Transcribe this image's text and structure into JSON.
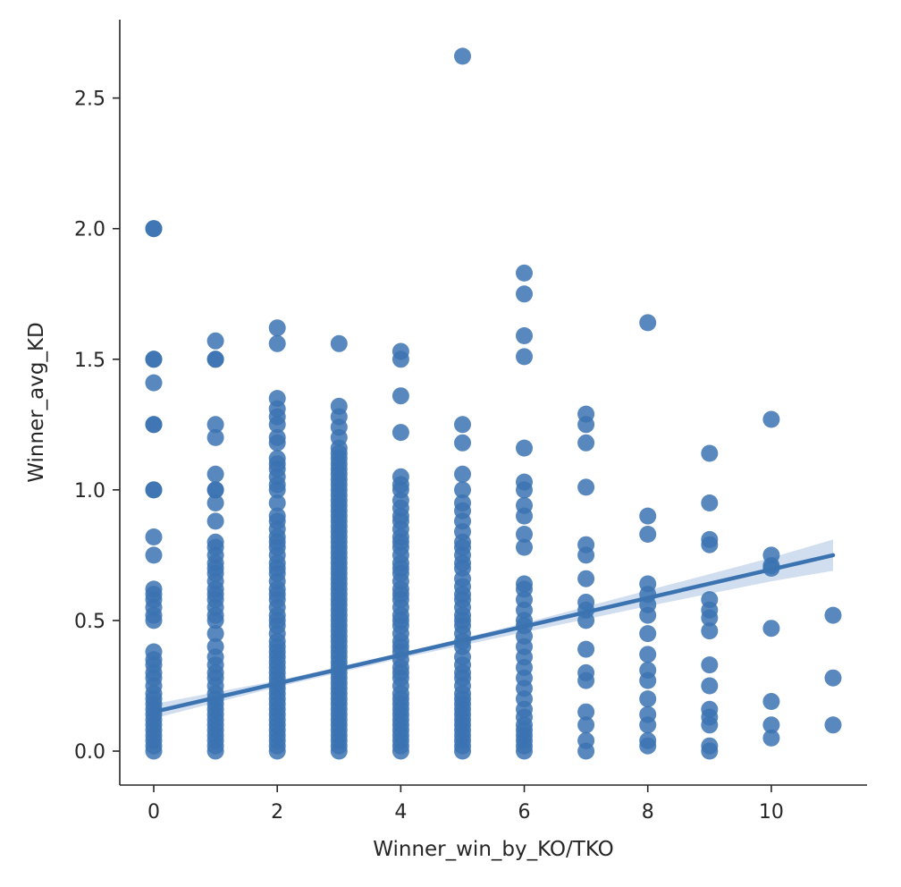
{
  "chart_data": {
    "type": "scatter",
    "title": "",
    "xlabel": "Winner_win_by_KO/TKO",
    "ylabel": "Winner_avg_KD",
    "xlim": [
      -0.55,
      11.55
    ],
    "ylim": [
      -0.13,
      2.8
    ],
    "xticks": [
      0,
      2,
      4,
      6,
      8,
      10
    ],
    "yticks": [
      0.0,
      0.5,
      1.0,
      1.5,
      2.0,
      2.5
    ],
    "ytick_labels": [
      "0.0",
      "0.5",
      "1.0",
      "1.5",
      "2.0",
      "2.5"
    ],
    "grid": false,
    "legend": false,
    "colors": {
      "points": "#3b73b1",
      "regression_line": "#3b73b1",
      "confidence_band": "#b8cde6",
      "axis": "#262626"
    },
    "regression": {
      "x": [
        0,
        11
      ],
      "y": [
        0.15,
        0.75
      ],
      "ci": [
        {
          "x": 0,
          "lower": 0.125,
          "upper": 0.18
        },
        {
          "x": 2,
          "lower": 0.245,
          "upper": 0.27
        },
        {
          "x": 4,
          "lower": 0.355,
          "upper": 0.375
        },
        {
          "x": 6,
          "lower": 0.455,
          "upper": 0.49
        },
        {
          "x": 8,
          "lower": 0.555,
          "upper": 0.615
        },
        {
          "x": 10,
          "lower": 0.65,
          "upper": 0.74
        },
        {
          "x": 11,
          "lower": 0.69,
          "upper": 0.81
        }
      ]
    },
    "series": [
      {
        "values_by_x": [
          {
            "x": 0,
            "y": [
              0,
              0.02,
              0.04,
              0.06,
              0.08,
              0.1,
              0.12,
              0.14,
              0.16,
              0.18,
              0.2,
              0.22,
              0.25,
              0.28,
              0.3,
              0.33,
              0.35,
              0.38,
              0.5,
              0.52,
              0.55,
              0.58,
              0.6,
              0.62,
              0.75,
              0.82,
              1.0,
              1.0,
              1.25,
              1.25,
              1.41,
              1.5,
              1.5,
              2.0,
              2.0
            ]
          },
          {
            "x": 1,
            "y": [
              0,
              0.02,
              0.04,
              0.06,
              0.08,
              0.1,
              0.12,
              0.14,
              0.16,
              0.18,
              0.2,
              0.22,
              0.25,
              0.28,
              0.3,
              0.33,
              0.36,
              0.4,
              0.45,
              0.5,
              0.52,
              0.55,
              0.58,
              0.6,
              0.62,
              0.65,
              0.68,
              0.7,
              0.72,
              0.75,
              0.78,
              0.8,
              0.88,
              0.95,
              1.0,
              1.0,
              1.06,
              1.2,
              1.25,
              1.5,
              1.5,
              1.57
            ]
          },
          {
            "x": 2,
            "y": [
              0,
              0.02,
              0.04,
              0.06,
              0.08,
              0.1,
              0.12,
              0.14,
              0.16,
              0.18,
              0.2,
              0.22,
              0.24,
              0.26,
              0.28,
              0.3,
              0.32,
              0.34,
              0.36,
              0.38,
              0.4,
              0.42,
              0.45,
              0.48,
              0.5,
              0.52,
              0.55,
              0.58,
              0.6,
              0.62,
              0.65,
              0.68,
              0.7,
              0.72,
              0.75,
              0.78,
              0.8,
              0.82,
              0.85,
              0.88,
              0.9,
              0.95,
              1.0,
              1.02,
              1.05,
              1.08,
              1.1,
              1.12,
              1.18,
              1.2,
              1.25,
              1.28,
              1.31,
              1.35,
              1.56,
              1.62
            ]
          },
          {
            "x": 3,
            "y": [
              0,
              0.02,
              0.04,
              0.06,
              0.08,
              0.1,
              0.12,
              0.14,
              0.16,
              0.18,
              0.2,
              0.22,
              0.24,
              0.26,
              0.28,
              0.3,
              0.32,
              0.34,
              0.36,
              0.38,
              0.4,
              0.42,
              0.44,
              0.46,
              0.48,
              0.5,
              0.52,
              0.54,
              0.56,
              0.58,
              0.6,
              0.62,
              0.64,
              0.66,
              0.68,
              0.7,
              0.72,
              0.74,
              0.76,
              0.78,
              0.8,
              0.82,
              0.84,
              0.86,
              0.88,
              0.9,
              0.92,
              0.94,
              0.96,
              0.98,
              1.0,
              1.02,
              1.04,
              1.06,
              1.08,
              1.1,
              1.12,
              1.14,
              1.16,
              1.2,
              1.24,
              1.28,
              1.32,
              1.56
            ]
          },
          {
            "x": 4,
            "y": [
              0,
              0.02,
              0.04,
              0.06,
              0.08,
              0.1,
              0.12,
              0.14,
              0.16,
              0.18,
              0.2,
              0.22,
              0.25,
              0.28,
              0.3,
              0.32,
              0.35,
              0.38,
              0.4,
              0.42,
              0.45,
              0.48,
              0.5,
              0.52,
              0.55,
              0.58,
              0.6,
              0.62,
              0.65,
              0.68,
              0.7,
              0.72,
              0.75,
              0.78,
              0.8,
              0.82,
              0.85,
              0.88,
              0.9,
              0.93,
              0.96,
              1.0,
              1.02,
              1.05,
              1.22,
              1.36,
              1.5,
              1.53
            ]
          },
          {
            "x": 5,
            "y": [
              0,
              0.02,
              0.04,
              0.06,
              0.08,
              0.1,
              0.12,
              0.14,
              0.16,
              0.18,
              0.2,
              0.22,
              0.25,
              0.28,
              0.3,
              0.33,
              0.36,
              0.4,
              0.42,
              0.45,
              0.48,
              0.5,
              0.52,
              0.55,
              0.58,
              0.6,
              0.63,
              0.66,
              0.7,
              0.72,
              0.75,
              0.78,
              0.8,
              0.84,
              0.88,
              0.92,
              0.95,
              1.0,
              1.06,
              1.18,
              1.25,
              2.66
            ]
          },
          {
            "x": 6,
            "y": [
              0,
              0.02,
              0.04,
              0.06,
              0.08,
              0.1,
              0.13,
              0.16,
              0.2,
              0.24,
              0.28,
              0.32,
              0.36,
              0.4,
              0.44,
              0.48,
              0.5,
              0.54,
              0.58,
              0.62,
              0.64,
              0.78,
              0.83,
              0.9,
              0.94,
              1.0,
              1.03,
              1.16,
              1.51,
              1.59,
              1.75,
              1.83
            ]
          },
          {
            "x": 7,
            "y": [
              0.0,
              0.04,
              0.1,
              0.15,
              0.27,
              0.3,
              0.39,
              0.5,
              0.54,
              0.57,
              0.66,
              0.75,
              0.79,
              1.01,
              1.18,
              1.25,
              1.29
            ]
          },
          {
            "x": 8,
            "y": [
              0.02,
              0.04,
              0.1,
              0.14,
              0.2,
              0.27,
              0.31,
              0.37,
              0.45,
              0.52,
              0.56,
              0.6,
              0.64,
              0.83,
              0.9,
              1.64
            ]
          },
          {
            "x": 9,
            "y": [
              0.0,
              0.02,
              0.1,
              0.13,
              0.16,
              0.25,
              0.33,
              0.46,
              0.51,
              0.54,
              0.58,
              0.79,
              0.81,
              0.95,
              1.14
            ]
          },
          {
            "x": 10,
            "y": [
              0.05,
              0.1,
              0.19,
              0.47,
              0.7,
              0.71,
              0.75,
              1.27
            ]
          },
          {
            "x": 11,
            "y": [
              0.1,
              0.28,
              0.52
            ]
          }
        ]
      }
    ]
  }
}
